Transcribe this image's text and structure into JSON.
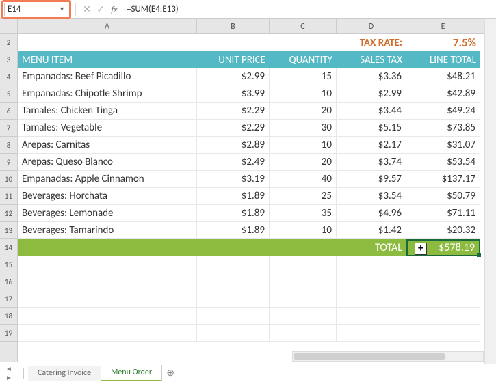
{
  "formula_bar": {
    "cell_ref": "E14",
    "formula": "=SUM(E4:E13)"
  },
  "columns": [
    "A",
    "B",
    "C",
    "D",
    "E"
  ],
  "row_numbers": [
    "2",
    "3",
    "4",
    "5",
    "6",
    "7",
    "8",
    "9",
    "10",
    "11",
    "12",
    "13",
    "14",
    "15",
    "16",
    "17",
    "18",
    "19"
  ],
  "tax": {
    "label": "TAX RATE:",
    "value": "7.5%"
  },
  "headers": {
    "item": "MENU ITEM",
    "price": "UNIT PRICE",
    "qty": "QUANTITY",
    "tax": "SALES TAX",
    "total": "LINE TOTAL"
  },
  "rows": [
    {
      "item": "Empanadas: Beef Picadillo",
      "price": "$2.99",
      "qty": "15",
      "tax": "$3.36",
      "total": "$48.21"
    },
    {
      "item": "Empanadas: Chipotle Shrimp",
      "price": "$3.99",
      "qty": "10",
      "tax": "$2.99",
      "total": "$42.89"
    },
    {
      "item": "Tamales: Chicken Tinga",
      "price": "$2.29",
      "qty": "20",
      "tax": "$3.44",
      "total": "$49.24"
    },
    {
      "item": "Tamales: Vegetable",
      "price": "$2.29",
      "qty": "30",
      "tax": "$5.15",
      "total": "$73.85"
    },
    {
      "item": "Arepas: Carnitas",
      "price": "$2.89",
      "qty": "10",
      "tax": "$2.17",
      "total": "$31.07"
    },
    {
      "item": "Arepas: Queso Blanco",
      "price": "$2.49",
      "qty": "20",
      "tax": "$3.74",
      "total": "$53.54"
    },
    {
      "item": "Empanadas: Apple Cinnamon",
      "price": "$3.19",
      "qty": "40",
      "tax": "$9.57",
      "total": "$137.17"
    },
    {
      "item": "Beverages: Horchata",
      "price": "$1.89",
      "qty": "25",
      "tax": "$3.54",
      "total": "$50.79"
    },
    {
      "item": "Beverages: Lemonade",
      "price": "$1.89",
      "qty": "35",
      "tax": "$4.96",
      "total": "$71.11"
    },
    {
      "item": "Beverages: Tamarindo",
      "price": "$1.89",
      "qty": "10",
      "tax": "$1.42",
      "total": "$20.32"
    }
  ],
  "total": {
    "label": "TOTAL",
    "value": "$578.19"
  },
  "tabs": {
    "t1": "Catering Invoice",
    "t2": "Menu Order"
  },
  "colors": {
    "header_bg": "#54b9c4",
    "total_bg": "#8cbb3f",
    "tax_color": "#d26c2a",
    "highlight_border": "#f47a55",
    "selected_border": "#1a6b3a"
  }
}
